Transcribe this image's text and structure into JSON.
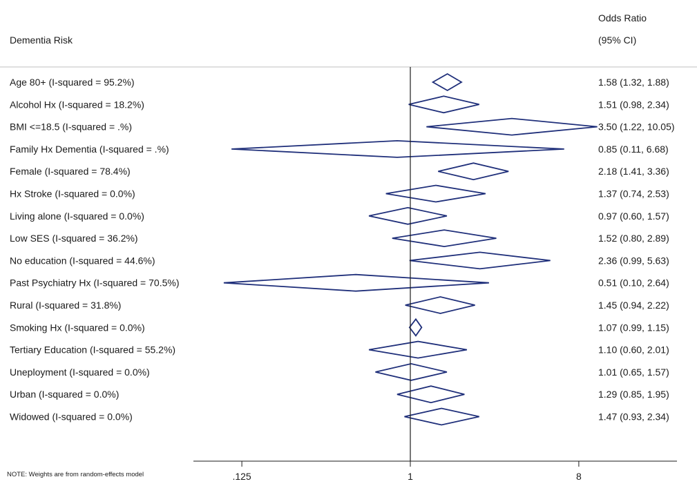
{
  "chart_data": {
    "type": "forest",
    "row_header": "Dementia Risk",
    "value_header": [
      "Odds Ratio",
      "(95% CI)"
    ],
    "note": "NOTE: Weights are from random-effects model",
    "x_scale": "log2",
    "xlim": [
      0.0625,
      12
    ],
    "null_value": 1,
    "x_ticks": [
      {
        "value": 0.125,
        "label": ".125"
      },
      {
        "value": 1,
        "label": "1"
      },
      {
        "value": 8,
        "label": "8"
      }
    ],
    "rows": [
      {
        "label": "Age 80+ (I-squared = 95.2%)",
        "or": 1.58,
        "lo": 1.32,
        "hi": 1.88,
        "text": "1.58 (1.32, 1.88)"
      },
      {
        "label": "Alcohol Hx (I-squared = 18.2%)",
        "or": 1.51,
        "lo": 0.98,
        "hi": 2.34,
        "text": "1.51 (0.98, 2.34)"
      },
      {
        "label": "BMI <=18.5 (I-squared = .%)",
        "or": 3.5,
        "lo": 1.22,
        "hi": 10.05,
        "text": "3.50 (1.22, 10.05)"
      },
      {
        "label": "Family Hx Dementia (I-squared = .%)",
        "or": 0.85,
        "lo": 0.11,
        "hi": 6.68,
        "text": "0.85 (0.11, 6.68)"
      },
      {
        "label": "Female (I-squared = 78.4%)",
        "or": 2.18,
        "lo": 1.41,
        "hi": 3.36,
        "text": "2.18 (1.41, 3.36)"
      },
      {
        "label": "Hx Stroke (I-squared = 0.0%)",
        "or": 1.37,
        "lo": 0.74,
        "hi": 2.53,
        "text": "1.37 (0.74, 2.53)"
      },
      {
        "label": "Living alone (I-squared = 0.0%)",
        "or": 0.97,
        "lo": 0.6,
        "hi": 1.57,
        "text": "0.97 (0.60, 1.57)"
      },
      {
        "label": "Low SES (I-squared = 36.2%)",
        "or": 1.52,
        "lo": 0.8,
        "hi": 2.89,
        "text": "1.52 (0.80, 2.89)"
      },
      {
        "label": "No education (I-squared = 44.6%)",
        "or": 2.36,
        "lo": 0.99,
        "hi": 5.63,
        "text": "2.36 (0.99, 5.63)"
      },
      {
        "label": "Past Psychiatry Hx (I-squared = 70.5%)",
        "or": 0.51,
        "lo": 0.1,
        "hi": 2.64,
        "text": "0.51 (0.10, 2.64)"
      },
      {
        "label": "Rural (I-squared = 31.8%)",
        "or": 1.45,
        "lo": 0.94,
        "hi": 2.22,
        "text": "1.45 (0.94, 2.22)"
      },
      {
        "label": "Smoking Hx (I-squared = 0.0%)",
        "or": 1.07,
        "lo": 0.99,
        "hi": 1.15,
        "text": "1.07 (0.99, 1.15)"
      },
      {
        "label": "Tertiary Education (I-squared = 55.2%)",
        "or": 1.1,
        "lo": 0.6,
        "hi": 2.01,
        "text": "1.10 (0.60, 2.01)"
      },
      {
        "label": "Uneployment (I-squared = 0.0%)",
        "or": 1.01,
        "lo": 0.65,
        "hi": 1.57,
        "text": "1.01 (0.65, 1.57)"
      },
      {
        "label": "Urban (I-squared = 0.0%)",
        "or": 1.29,
        "lo": 0.85,
        "hi": 1.95,
        "text": "1.29 (0.85, 1.95)"
      },
      {
        "label": "Widowed (I-squared = 0.0%)",
        "or": 1.47,
        "lo": 0.93,
        "hi": 2.34,
        "text": "1.47 (0.93, 2.34)"
      }
    ],
    "colors": {
      "diamond": "#1f2f7a",
      "axis": "#1a1a1a",
      "rule": "#bfbfbf"
    }
  }
}
